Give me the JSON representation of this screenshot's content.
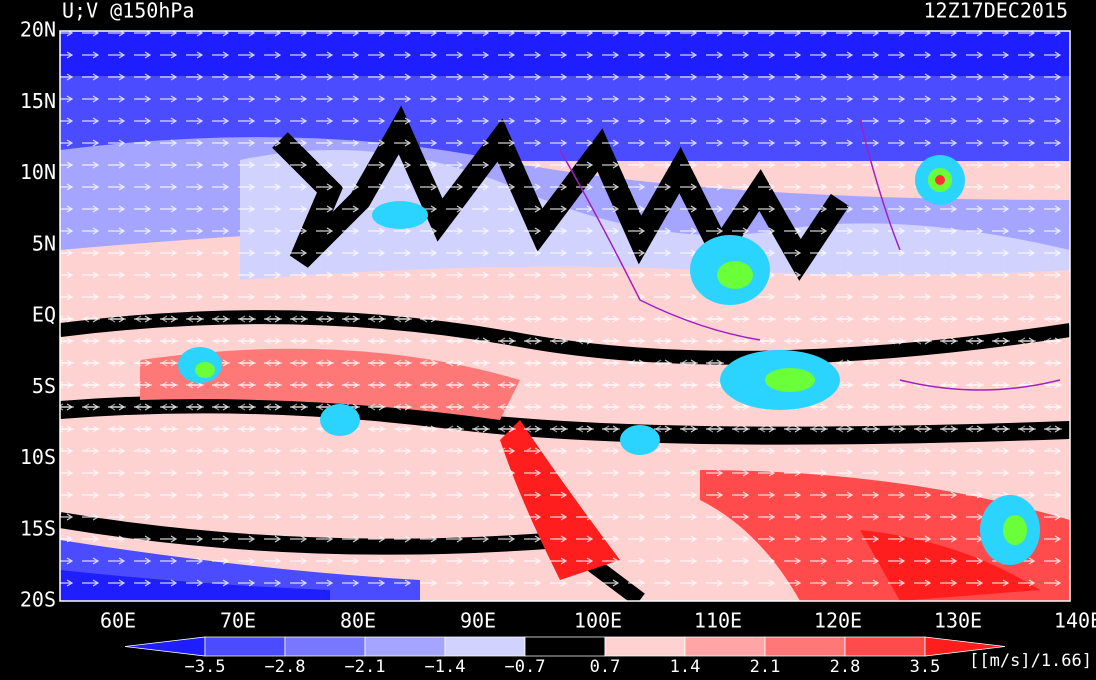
{
  "header": {
    "title": "U;V @150hPa",
    "time": "12Z17DEC2015"
  },
  "lat_labels": [
    "20N",
    "15N",
    "10N",
    "5N",
    "EQ",
    "5S",
    "10S",
    "15S",
    "20S"
  ],
  "lon_labels": [
    "60E",
    "70E",
    "80E",
    "90E",
    "100E",
    "110E",
    "120E",
    "130E",
    "140E"
  ],
  "colorbar": {
    "labels": [
      "−3.5",
      "−2.8",
      "−2.1",
      "−1.4",
      "−0.7",
      "0.7",
      "1.4",
      "2.1",
      "2.8",
      "3.5"
    ],
    "colors": [
      "#1e1eff",
      "#4b4bff",
      "#7878ff",
      "#a5a5ff",
      "#d2d2ff",
      "#000000",
      "#ffd2d2",
      "#ffa5a5",
      "#ff7878",
      "#ff4b4b",
      "#ff1e1e"
    ],
    "units": "[[m/s]/1.66]"
  }
}
